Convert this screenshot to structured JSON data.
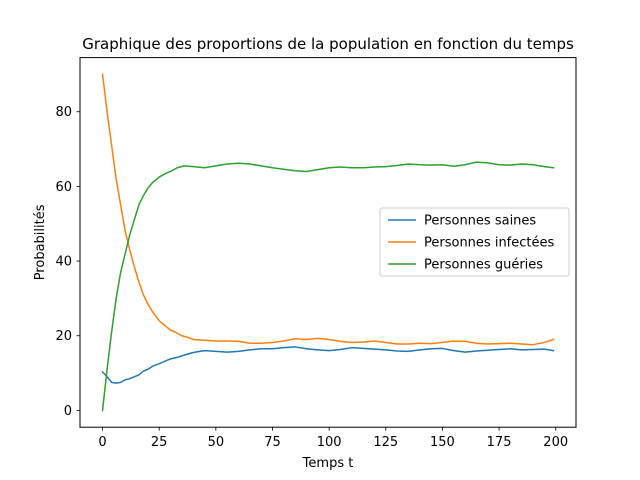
{
  "chart_data": {
    "type": "line",
    "title": "Graphique des proportions de la population en fonction du temps",
    "xlabel": "Temps t",
    "ylabel": "Probabilités",
    "xlim": [
      -9.95,
      208.95
    ],
    "ylim": [
      -4.5,
      94.5
    ],
    "xticks": [
      0,
      25,
      50,
      75,
      100,
      125,
      150,
      175,
      200
    ],
    "yticks": [
      0,
      20,
      40,
      60,
      80
    ],
    "grid": false,
    "legend_position": "center-right",
    "series": [
      {
        "name": "Personnes saines",
        "color": "#1f77b4",
        "points": [
          [
            0,
            10.3
          ],
          [
            2,
            9
          ],
          [
            4,
            7.5
          ],
          [
            6,
            7.3
          ],
          [
            8,
            7.5
          ],
          [
            10,
            8.2
          ],
          [
            12,
            8.5
          ],
          [
            14,
            9
          ],
          [
            16,
            9.5
          ],
          [
            18,
            10.5
          ],
          [
            20,
            11
          ],
          [
            22,
            11.8
          ],
          [
            25,
            12.5
          ],
          [
            28,
            13.3
          ],
          [
            30,
            13.8
          ],
          [
            33,
            14.2
          ],
          [
            36,
            14.8
          ],
          [
            40,
            15.5
          ],
          [
            45,
            16
          ],
          [
            50,
            15.8
          ],
          [
            55,
            15.6
          ],
          [
            60,
            15.8
          ],
          [
            65,
            16.2
          ],
          [
            70,
            16.5
          ],
          [
            75,
            16.5
          ],
          [
            80,
            16.8
          ],
          [
            85,
            17
          ],
          [
            90,
            16.5
          ],
          [
            95,
            16.2
          ],
          [
            100,
            16
          ],
          [
            105,
            16.3
          ],
          [
            110,
            16.8
          ],
          [
            115,
            16.6
          ],
          [
            120,
            16.4
          ],
          [
            125,
            16.2
          ],
          [
            130,
            15.9
          ],
          [
            135,
            15.8
          ],
          [
            140,
            16.2
          ],
          [
            145,
            16.5
          ],
          [
            150,
            16.6
          ],
          [
            155,
            16
          ],
          [
            160,
            15.6
          ],
          [
            165,
            15.9
          ],
          [
            170,
            16.1
          ],
          [
            175,
            16.3
          ],
          [
            180,
            16.5
          ],
          [
            185,
            16.2
          ],
          [
            190,
            16.3
          ],
          [
            195,
            16.4
          ],
          [
            199,
            16
          ]
        ]
      },
      {
        "name": "Personnes infectées",
        "color": "#ff7f0e",
        "points": [
          [
            0,
            90
          ],
          [
            2,
            80
          ],
          [
            4,
            71
          ],
          [
            6,
            62
          ],
          [
            8,
            55
          ],
          [
            10,
            48
          ],
          [
            12,
            43
          ],
          [
            14,
            38.5
          ],
          [
            16,
            34.5
          ],
          [
            18,
            31
          ],
          [
            20,
            28.5
          ],
          [
            22,
            26.5
          ],
          [
            25,
            24
          ],
          [
            28,
            22.5
          ],
          [
            30,
            21.5
          ],
          [
            32,
            21
          ],
          [
            35,
            20
          ],
          [
            38,
            19.5
          ],
          [
            40,
            19
          ],
          [
            45,
            18.8
          ],
          [
            50,
            18.6
          ],
          [
            55,
            18.6
          ],
          [
            60,
            18.5
          ],
          [
            65,
            18
          ],
          [
            70,
            18
          ],
          [
            75,
            18.2
          ],
          [
            80,
            18.6
          ],
          [
            85,
            19.2
          ],
          [
            90,
            19
          ],
          [
            95,
            19.3
          ],
          [
            100,
            19
          ],
          [
            105,
            18.5
          ],
          [
            110,
            18.2
          ],
          [
            115,
            18.3
          ],
          [
            120,
            18.6
          ],
          [
            125,
            18.2
          ],
          [
            130,
            17.8
          ],
          [
            135,
            17.8
          ],
          [
            140,
            18
          ],
          [
            145,
            17.9
          ],
          [
            150,
            18.2
          ],
          [
            155,
            18.6
          ],
          [
            160,
            18.5
          ],
          [
            165,
            18
          ],
          [
            170,
            17.8
          ],
          [
            175,
            17.9
          ],
          [
            180,
            18
          ],
          [
            185,
            17.8
          ],
          [
            190,
            17.6
          ],
          [
            195,
            18.2
          ],
          [
            199,
            19
          ]
        ]
      },
      {
        "name": "Personnes guéries",
        "color": "#2ca02c",
        "points": [
          [
            0,
            0
          ],
          [
            2,
            11
          ],
          [
            4,
            21
          ],
          [
            6,
            30
          ],
          [
            8,
            37
          ],
          [
            10,
            42
          ],
          [
            12,
            47
          ],
          [
            14,
            51
          ],
          [
            16,
            55
          ],
          [
            18,
            57.5
          ],
          [
            20,
            59.5
          ],
          [
            22,
            61
          ],
          [
            25,
            62.5
          ],
          [
            28,
            63.5
          ],
          [
            30,
            64
          ],
          [
            33,
            65
          ],
          [
            36,
            65.5
          ],
          [
            40,
            65.3
          ],
          [
            45,
            65
          ],
          [
            50,
            65.5
          ],
          [
            55,
            66
          ],
          [
            60,
            66.2
          ],
          [
            65,
            66
          ],
          [
            70,
            65.5
          ],
          [
            75,
            65
          ],
          [
            80,
            64.6
          ],
          [
            85,
            64.2
          ],
          [
            90,
            64
          ],
          [
            95,
            64.5
          ],
          [
            100,
            65
          ],
          [
            105,
            65.2
          ],
          [
            110,
            65
          ],
          [
            115,
            65
          ],
          [
            120,
            65.2
          ],
          [
            125,
            65.3
          ],
          [
            130,
            65.6
          ],
          [
            135,
            66
          ],
          [
            140,
            65.8
          ],
          [
            145,
            65.7
          ],
          [
            150,
            65.8
          ],
          [
            155,
            65.4
          ],
          [
            160,
            65.8
          ],
          [
            165,
            66.5
          ],
          [
            170,
            66.3
          ],
          [
            175,
            65.8
          ],
          [
            180,
            65.7
          ],
          [
            185,
            66
          ],
          [
            190,
            65.8
          ],
          [
            195,
            65.3
          ],
          [
            199,
            65
          ]
        ]
      }
    ]
  }
}
